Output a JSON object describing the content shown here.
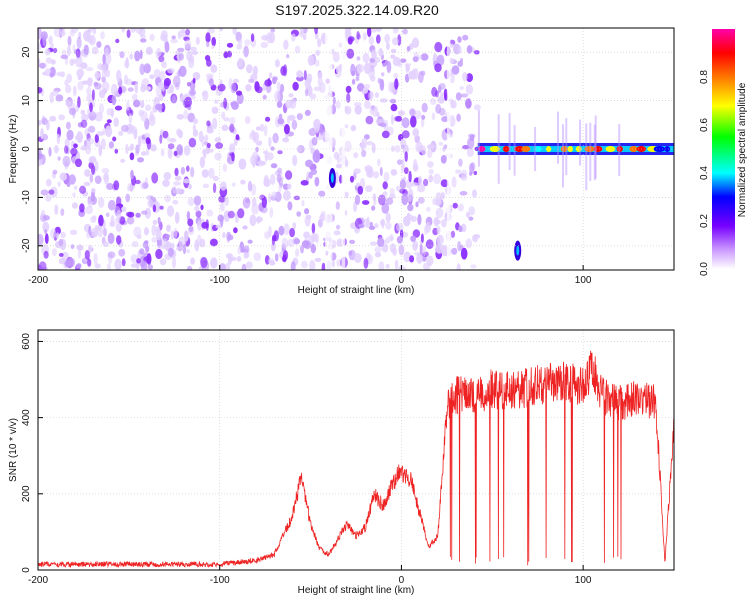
{
  "figure_title": "S197.2025.322.14.09.R20",
  "chart_data": [
    {
      "type": "heatmap",
      "title": "",
      "xlabel": "Height of straight line (km)",
      "ylabel": "Frequency (Hz)",
      "xlim": [
        -200,
        150
      ],
      "ylim": [
        -25,
        25
      ],
      "xticks": [
        -200,
        -100,
        0,
        100
      ],
      "yticks": [
        -20,
        -10,
        0,
        10,
        20
      ],
      "colorbar": {
        "label": "Normalized spectral amplitude",
        "range": [
          0.0,
          1.0
        ],
        "ticks": [
          0.0,
          0.2,
          0.4,
          0.6,
          0.8
        ],
        "colors": [
          "#ffffff",
          "#cc99ff",
          "#7700ff",
          "#0000ff",
          "#00ffff",
          "#00ff00",
          "#ffff00",
          "#ff7700",
          "#ff0000",
          "#ff00aa"
        ]
      },
      "features": [
        {
          "name": "noise",
          "x_range": [
            -200,
            42
          ],
          "freq_range": [
            -25,
            25
          ],
          "amplitude": 0.15
        },
        {
          "name": "signal",
          "x_range": [
            42,
            150
          ],
          "freq": 0.0,
          "amplitude_range": [
            0.3,
            1.0
          ]
        },
        {
          "name": "blob",
          "x": -38,
          "freq": -6,
          "amplitude": 0.25
        },
        {
          "name": "blob",
          "x": 64,
          "freq": -21,
          "amplitude": 0.25
        }
      ]
    },
    {
      "type": "line",
      "title": "",
      "xlabel": "Height of straight line (km)",
      "ylabel": "SNR (10 * v/v)",
      "xlim": [
        -200,
        150
      ],
      "ylim": [
        0,
        630
      ],
      "xticks": [
        -200,
        -100,
        0,
        100
      ],
      "yticks": [
        0,
        200,
        400,
        600
      ],
      "color": "#ee2222",
      "x": [
        -200,
        -150,
        -100,
        -80,
        -70,
        -60,
        -55,
        -50,
        -45,
        -40,
        -30,
        -25,
        -20,
        -15,
        -10,
        -5,
        0,
        5,
        10,
        15,
        20,
        25,
        30,
        40,
        50,
        60,
        70,
        80,
        90,
        100,
        105,
        110,
        120,
        130,
        140,
        145,
        150
      ],
      "values": [
        15,
        15,
        15,
        25,
        40,
        140,
        250,
        120,
        55,
        40,
        120,
        90,
        110,
        200,
        170,
        230,
        260,
        240,
        150,
        60,
        90,
        420,
        460,
        460,
        475,
        470,
        480,
        490,
        495,
        480,
        540,
        460,
        440,
        450,
        440,
        20,
        380
      ]
    }
  ]
}
